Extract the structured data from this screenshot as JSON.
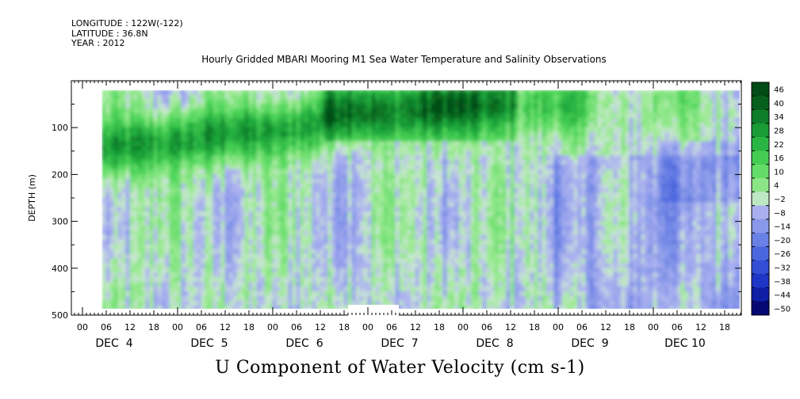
{
  "header": {
    "longitude": "LONGITUDE : 122W(-122)",
    "latitude": "LATITUDE : 36.8N",
    "year": "YEAR : 2012"
  },
  "chart_data": {
    "type": "heatmap",
    "title": "Hourly Gridded MBARI Mooring M1 Sea Water Temperature and Salinity Observations",
    "xlabel": "U Component of Water Velocity (cm s-1)",
    "ylabel": "DEPTH (m)",
    "ylim": [
      500,
      0
    ],
    "y_ticks": [
      100,
      200,
      300,
      400,
      500
    ],
    "x_hour_ticks": [
      "00",
      "06",
      "12",
      "18",
      "00",
      "06",
      "12",
      "18",
      "00",
      "06",
      "12",
      "18",
      "00",
      "06",
      "12",
      "18",
      "00",
      "06",
      "12",
      "18",
      "00",
      "06",
      "12",
      "18",
      "00",
      "06",
      "12",
      "18"
    ],
    "x_day_labels": [
      "DEC  4",
      "DEC  5",
      "DEC  6",
      "DEC  7",
      "DEC  8",
      "DEC  9",
      "DEC 10"
    ],
    "colorbar": {
      "levels": [
        48,
        46,
        40,
        34,
        28,
        22,
        16,
        10,
        4,
        -2,
        -8,
        -14,
        -20,
        -26,
        -32,
        -38,
        -44,
        -50
      ],
      "range": [
        -50,
        48
      ]
    },
    "data_depth_range": [
      20,
      490
    ],
    "features": [
      {
        "desc": "strong eastward (green) band",
        "depth_range": [
          80,
          170
        ],
        "time": "DEC 4 06 - DEC 6 12"
      },
      {
        "desc": "strong eastward (green) near surface",
        "depth_range": [
          20,
          130
        ],
        "time": "DEC 6 12 - DEC 8 12"
      },
      {
        "desc": "weak westward (blue) at depth",
        "depth_range": [
          200,
          490
        ],
        "time": "DEC 9 - DEC 10"
      }
    ]
  }
}
